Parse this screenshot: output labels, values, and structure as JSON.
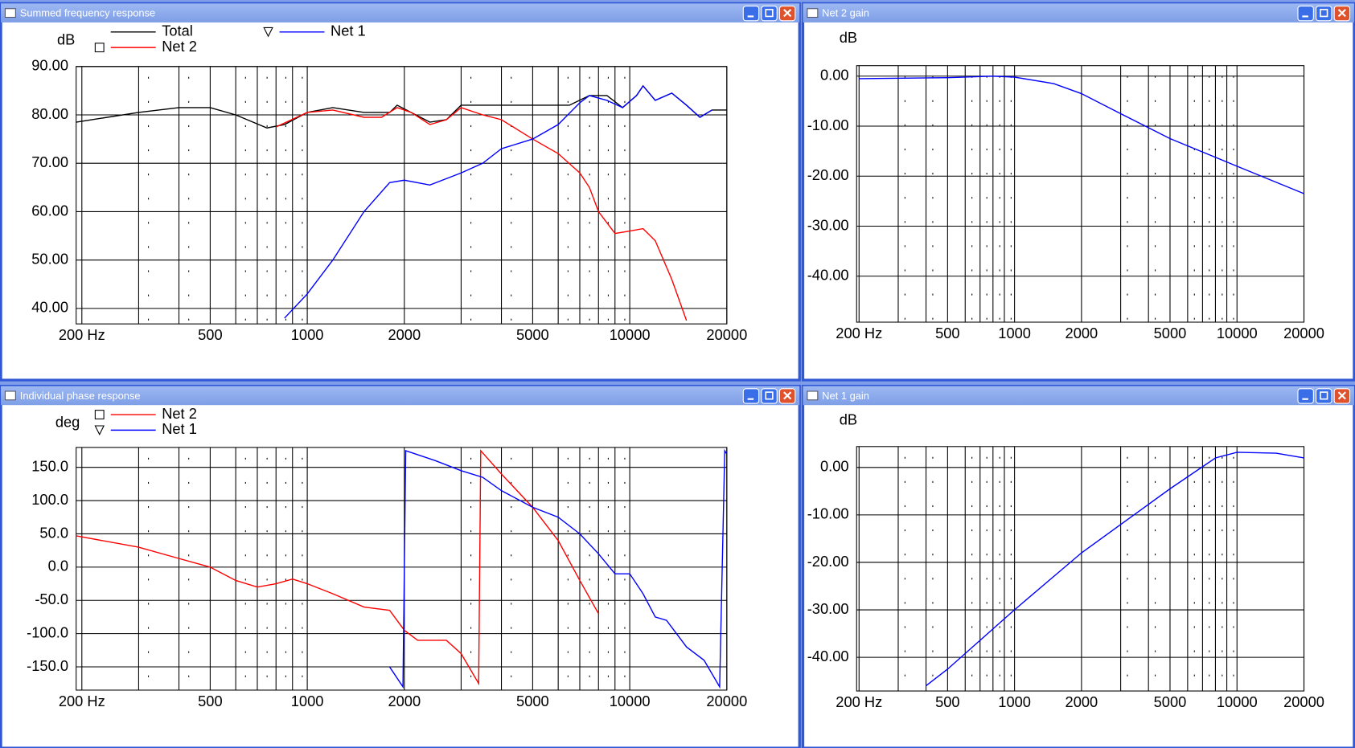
{
  "chart_data": [
    {
      "type": "line",
      "title": "Summed frequency response",
      "ylabel": "dB",
      "xscale": "log",
      "grid": true,
      "xlim": [
        192,
        20000
      ],
      "ylim": [
        36.8,
        90
      ],
      "xticks": [
        {
          "value": 200,
          "label": "200 Hz"
        },
        500,
        1000,
        2000,
        5000,
        10000,
        20000
      ],
      "yticks": [
        {
          "value": 90,
          "label": "90.00"
        },
        {
          "value": 80,
          "label": "80.00"
        },
        {
          "value": 70,
          "label": "70.00"
        },
        {
          "value": 60,
          "label": "60.00"
        },
        {
          "value": 50,
          "label": "50.00"
        },
        {
          "value": 40,
          "label": "40.00"
        }
      ],
      "series": [
        {
          "name": "Total",
          "color": "#000000",
          "x": [
            192,
            300,
            400,
            500,
            600,
            750,
            850,
            1000,
            1200,
            1500,
            1800,
            1900,
            2100,
            2400,
            2700,
            3000,
            4000,
            5000,
            6500,
            7500,
            8500,
            9500,
            10500,
            11000,
            12000,
            13500,
            15000,
            16500,
            18000,
            20000
          ],
          "values": [
            78.5,
            80.5,
            81.5,
            81.5,
            80,
            77.3,
            78,
            80.5,
            81.5,
            80.5,
            80.5,
            82,
            80.5,
            78.5,
            79,
            82,
            82,
            82,
            82,
            84,
            84,
            81.5,
            84,
            86,
            83,
            84.5,
            82,
            79.5,
            81,
            81
          ]
        },
        {
          "name": "Net 2",
          "color": "#ff0000",
          "marker": "square",
          "x": [
            800,
            1000,
            1200,
            1500,
            1700,
            1900,
            2100,
            2400,
            2700,
            3000,
            3500,
            4000,
            5000,
            6000,
            7000,
            7500,
            8000,
            9000,
            10000,
            11000,
            12000,
            13500,
            15000
          ],
          "values": [
            77.5,
            80.5,
            81,
            79.5,
            79.5,
            81.5,
            80.5,
            78,
            79,
            81.5,
            80,
            79,
            75,
            72,
            68,
            65,
            60,
            55.5,
            56,
            56.5,
            54,
            46,
            37.5
          ]
        },
        {
          "name": "Net 1",
          "color": "#0000ff",
          "marker": "triangle",
          "x": [
            850,
            1000,
            1200,
            1500,
            1800,
            2000,
            2400,
            3000,
            3500,
            4000,
            5000,
            6000,
            7000,
            7500,
            8500,
            9500,
            10500,
            11000,
            12000,
            13500,
            15000,
            16500,
            18000
          ],
          "values": [
            38,
            43,
            50,
            60,
            66,
            66.5,
            65.5,
            68,
            70,
            73,
            75,
            78,
            82.5,
            84,
            83,
            81.5,
            84,
            86,
            83,
            84.5,
            82,
            79.5,
            81
          ]
        }
      ]
    },
    {
      "type": "line",
      "title": "Net 2 gain",
      "ylabel": "dB",
      "xscale": "log",
      "grid": true,
      "xlim": [
        195,
        20000
      ],
      "ylim": [
        -49.2,
        2.1
      ],
      "xticks": [
        {
          "value": 200,
          "label": "200 Hz"
        },
        500,
        1000,
        2000,
        5000,
        10000,
        20000
      ],
      "yticks": [
        {
          "value": 0,
          "label": "0.00"
        },
        {
          "value": -10,
          "label": "-10.00"
        },
        {
          "value": -20,
          "label": "-20.00"
        },
        {
          "value": -30,
          "label": "-30.00"
        },
        {
          "value": -40,
          "label": "-40.00"
        }
      ],
      "series": [
        {
          "color": "#0000ff",
          "x": [
            200,
            500,
            800,
            1000,
            1500,
            2000,
            3000,
            5000,
            10000,
            20000
          ],
          "values": [
            -0.5,
            -0.3,
            0,
            -0.2,
            -1.5,
            -3.5,
            -7.5,
            -12.5,
            -18,
            -23.5
          ]
        }
      ]
    },
    {
      "type": "line",
      "title": "Individual phase response",
      "ylabel": "deg",
      "xscale": "log",
      "grid": true,
      "xlim": [
        192,
        20000
      ],
      "ylim": [
        -185,
        180
      ],
      "xticks": [
        {
          "value": 200,
          "label": "200 Hz"
        },
        500,
        1000,
        2000,
        5000,
        10000,
        20000
      ],
      "yticks": [
        {
          "value": 150,
          "label": "150.0"
        },
        {
          "value": 100,
          "label": "100.0"
        },
        {
          "value": 50,
          "label": "50.0"
        },
        {
          "value": 0,
          "label": "0.0"
        },
        {
          "value": -50,
          "label": "-50.0"
        },
        {
          "value": -100,
          "label": "-100.0"
        },
        {
          "value": -150,
          "label": "-150.0"
        }
      ],
      "series": [
        {
          "name": "Net 2",
          "color": "#ff0000",
          "marker": "square",
          "x": [
            192,
            300,
            400,
            500,
            600,
            700,
            800,
            900,
            1000,
            1200,
            1500,
            1800,
            2000,
            2200,
            2700,
            3000,
            3400,
            3450,
            4000,
            5000,
            6000,
            7000,
            8000
          ],
          "values": [
            47,
            30,
            13,
            0,
            -20,
            -30,
            -25,
            -18,
            -25,
            -40,
            -60,
            -65,
            -95,
            -110,
            -110,
            -130,
            -175,
            175,
            140,
            90,
            40,
            -20,
            -70
          ]
        },
        {
          "name": "Net 1",
          "color": "#0000ff",
          "marker": "triangle",
          "x": [
            1800,
            1980,
            2020,
            2500,
            3000,
            3500,
            4000,
            5000,
            6000,
            7000,
            8000,
            9000,
            10000,
            11000,
            12000,
            13000,
            15000,
            17000,
            19000,
            19700,
            20000
          ],
          "values": [
            -150,
            -180,
            175,
            160,
            145,
            135,
            115,
            90,
            75,
            50,
            20,
            -10,
            -10,
            -40,
            -75,
            -80,
            -120,
            -140,
            -180,
            175,
            170
          ]
        }
      ]
    },
    {
      "type": "line",
      "title": "Net 1 gain",
      "ylabel": "dB",
      "xscale": "log",
      "grid": true,
      "xlim": [
        195,
        20000
      ],
      "ylim": [
        -47.1,
        4.4
      ],
      "xticks": [
        {
          "value": 200,
          "label": "200 Hz"
        },
        500,
        1000,
        2000,
        5000,
        10000,
        20000
      ],
      "yticks": [
        {
          "value": 0,
          "label": "0.00"
        },
        {
          "value": -10,
          "label": "-10.00"
        },
        {
          "value": -20,
          "label": "-20.00"
        },
        {
          "value": -30,
          "label": "-30.00"
        },
        {
          "value": -40,
          "label": "-40.00"
        }
      ],
      "series": [
        {
          "color": "#0000ff",
          "x": [
            400,
            500,
            1000,
            2000,
            5000,
            8000,
            10000,
            15000,
            20000
          ],
          "values": [
            -46,
            -42.5,
            -30,
            -18,
            -4.5,
            2,
            3.2,
            3,
            2
          ]
        }
      ]
    }
  ]
}
